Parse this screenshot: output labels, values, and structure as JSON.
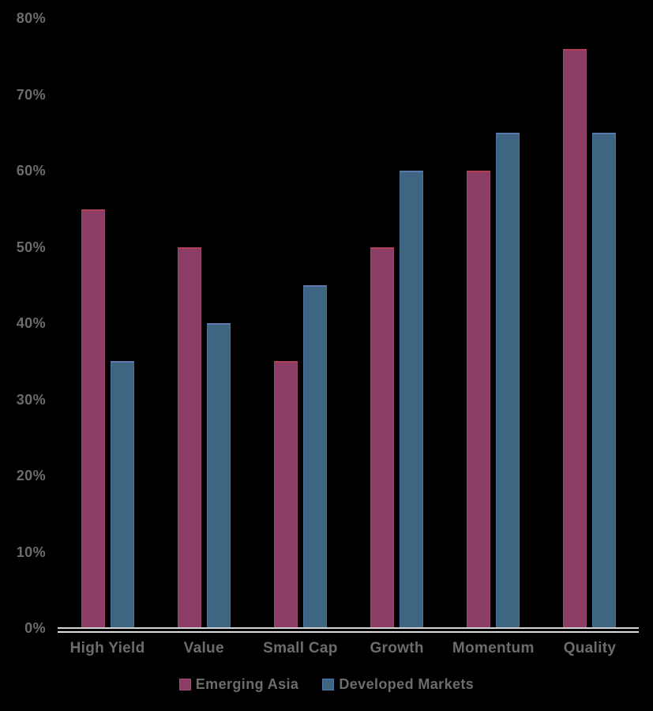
{
  "chart_data": {
    "type": "bar",
    "title": "",
    "categories": [
      "High Yield",
      "Value",
      "Small Cap",
      "Growth",
      "Momentum",
      "Quality"
    ],
    "series": [
      {
        "name": "Emerging Asia",
        "color": "#8b3d66",
        "values": [
          55,
          50,
          35,
          50,
          60,
          76
        ]
      },
      {
        "name": "Developed Markets",
        "color": "#3e6581",
        "values": [
          35,
          40,
          45,
          60,
          65,
          65
        ]
      }
    ],
    "value_suffix": "%",
    "y_ticks": [
      0,
      10,
      20,
      30,
      40,
      50,
      60,
      70,
      80
    ],
    "y_tick_labels": [
      "0%",
      "10%",
      "20%",
      "30%",
      "40%",
      "50%",
      "60%",
      "70%",
      "80%"
    ],
    "ylim": [
      0,
      80
    ],
    "xlabel": "",
    "ylabel": "",
    "grid": false,
    "legend_position": "bottom",
    "colors": {
      "background": "#000000",
      "axis_line": "#d6d6d6",
      "labels": "#6c6c6c"
    }
  }
}
